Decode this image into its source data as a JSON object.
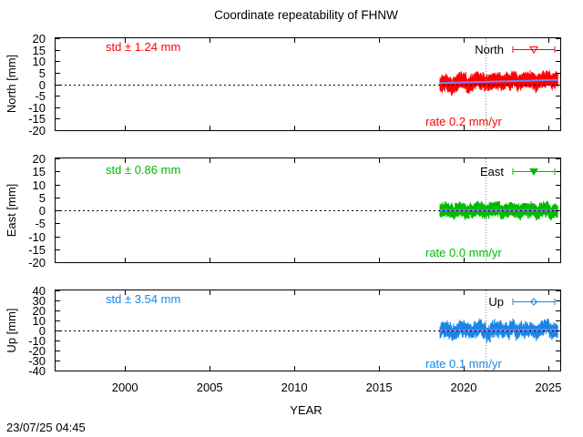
{
  "title": "Coordinate repeatability of FHNW",
  "xlabel": "YEAR",
  "timestamp": "23/07/25 04:45",
  "colors": {
    "north": "#ff0000",
    "east": "#00bb00",
    "up": "#1a87e6",
    "trend": "#7f7fff"
  },
  "chart_data": [
    {
      "type": "scatter",
      "component": "North",
      "ylabel": "North [mm]",
      "legend": "North",
      "legend_position": "top-right",
      "std_label": "std ± 1.24 mm",
      "rate_label": "rate  0.2 mm/yr",
      "xlim": [
        1995.9,
        2025.7
      ],
      "ylim": [
        -20,
        20
      ],
      "yticks": [
        20,
        15,
        10,
        5,
        0,
        -5,
        -10,
        -15,
        -20
      ],
      "xticks": [
        2000,
        2005,
        2010,
        2015,
        2020,
        2025
      ],
      "data_range": [
        2018.6,
        2025.55
      ],
      "std_mm": 1.24,
      "rate_mm_per_yr": 0.2,
      "trend_start": 0.5,
      "event_line_x": 2021.3,
      "zero_line": true,
      "error_bar_mm": 2.5
    },
    {
      "type": "scatter",
      "component": "East",
      "ylabel": "East [mm]",
      "legend": "East",
      "legend_position": "top-right",
      "std_label": "std ± 0.86 mm",
      "rate_label": "rate  0.0 mm/yr",
      "xlim": [
        1995.9,
        2025.7
      ],
      "ylim": [
        -20,
        20
      ],
      "yticks": [
        20,
        15,
        10,
        5,
        0,
        -5,
        -10,
        -15,
        -20
      ],
      "xticks": [
        2000,
        2005,
        2010,
        2015,
        2020,
        2025
      ],
      "data_range": [
        2018.6,
        2025.55
      ],
      "std_mm": 0.86,
      "rate_mm_per_yr": 0.0,
      "trend_start": 0.0,
      "event_line_x": 2021.3,
      "zero_line": true,
      "error_bar_mm": 2.0
    },
    {
      "type": "scatter",
      "component": "Up",
      "ylabel": "Up [mm]",
      "legend": "Up",
      "legend_position": "top-right",
      "std_label": "std ± 3.54 mm",
      "rate_label": "rate  0.1 mm/yr",
      "xlim": [
        1995.9,
        2025.7
      ],
      "ylim": [
        -40,
        40
      ],
      "yticks": [
        40,
        30,
        20,
        10,
        0,
        -10,
        -20,
        -30,
        -40
      ],
      "xticks": [
        2000,
        2005,
        2010,
        2015,
        2020,
        2025
      ],
      "data_range": [
        2018.6,
        2025.55
      ],
      "std_mm": 3.54,
      "rate_mm_per_yr": 0.1,
      "trend_start": 0.0,
      "event_line_x": 2021.3,
      "zero_line": true,
      "error_bar_mm": 5.0
    }
  ]
}
